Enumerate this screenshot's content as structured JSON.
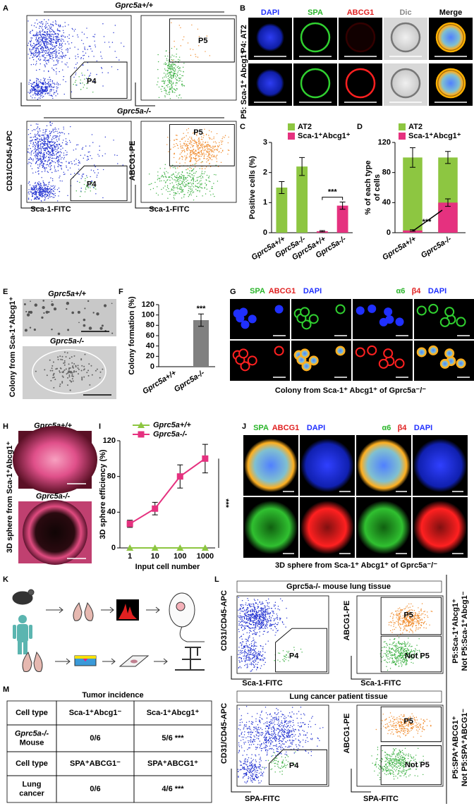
{
  "panel_labels": [
    "A",
    "B",
    "C",
    "D",
    "E",
    "F",
    "G",
    "H",
    "I",
    "J",
    "K",
    "L",
    "M"
  ],
  "panel_a": {
    "top_title": "Gprc5a+/+",
    "bottom_title": "Gprc5a-/-",
    "ylabel_left": "CD31/CD45-APC",
    "ylabel_right": "ABCG1-PE",
    "xlabel_left": "Sca-1-FITC",
    "xlabel_right": "Sca-1-FITC",
    "gates": [
      "P4",
      "P5",
      "P4",
      "P5"
    ]
  },
  "panel_b": {
    "columns": [
      "DAPI",
      "SPA",
      "ABCG1",
      "Dic",
      "Merge"
    ],
    "rows": [
      "P4: AT2",
      "P5: Sca-1⁺ Abcg1⁺"
    ]
  },
  "panel_e": {
    "top_title": "Gprc5a+/+",
    "bottom_title": "Gprc5a-/-",
    "side_label": "Colony from Sca-1⁺Abcg1⁺"
  },
  "panel_g": {
    "left_headers": [
      "SPA",
      "ABCG1",
      "DAPI"
    ],
    "right_headers": [
      "α6",
      "β4",
      "DAPI"
    ],
    "caption": "Colony from Sca-1⁺ Abcg1⁺ of Gprc5a⁻/⁻"
  },
  "panel_h": {
    "top_title": "Gprc5a+/+",
    "bottom_title": "Gprc5a-/-",
    "side_label": "3D sphere from Sca-1⁺Abcg1⁺"
  },
  "panel_j": {
    "left_headers": [
      "SPA",
      "ABCG1",
      "DAPI"
    ],
    "right_headers": [
      "α6",
      "β4",
      "DAPI"
    ],
    "caption": "3D sphere from Sca-1⁺ Abcg1⁺ of Gprc5a⁻/⁻"
  },
  "panel_l": {
    "top_title": "Gprc5a-/- mouse lung tissue",
    "bottom_title": "Lung cancer patient tissue",
    "ylabel_left": "CD31/CD45-APC",
    "ylabel_right": "ABCG1-PE",
    "top_xlabels": [
      "Sca-1-FITC",
      "Sca-1-FITC"
    ],
    "bottom_xlabels": [
      "SPA-FITC",
      "SPA-FITC"
    ],
    "top_gates": [
      "P4",
      "P5",
      "Not P5"
    ],
    "bottom_gates": [
      "P4",
      "P5",
      "Not P5"
    ],
    "top_side": [
      "P5:Sca-1⁺Abcg1⁺",
      "Not P5:Sca-1⁺Abcg1⁻"
    ],
    "bottom_side": [
      "P5:SPA⁺ABCG1⁺",
      "Not P5:SPA⁺ABCG1⁻"
    ]
  },
  "panel_m": {
    "title": "Tumor incidence",
    "rows": [
      [
        "Cell type",
        "Sca-1⁺Abcg1⁻",
        "Sca-1⁺Abcg1⁺"
      ],
      [
        [
          "Gprc5a-/-",
          "Mouse"
        ],
        "0/6",
        "5/6 ***"
      ],
      [
        "Cell type",
        "SPA⁺ABCG1⁻",
        "SPA⁺ABCG1⁺"
      ],
      [
        [
          "Lung",
          "cancer"
        ],
        "0/6",
        "4/6 ***"
      ]
    ]
  },
  "chart_data": [
    {
      "type": "bar",
      "ylabel": "Positive cells (%)",
      "categories": [
        "Gprc5a+/+",
        "Gprc5a-/-",
        "Gprc5a+/+",
        "Gprc5a-/-"
      ],
      "series": [
        {
          "name": "AT2",
          "color": "#8dc641",
          "values": [
            1.5,
            2.2,
            null,
            null
          ],
          "errors": [
            0.2,
            0.3,
            null,
            null
          ]
        },
        {
          "name": "Sca-1⁺Abcg1⁺",
          "color": "#e5317f",
          "values": [
            null,
            null,
            0.05,
            0.9
          ],
          "errors": [
            null,
            null,
            0.02,
            0.12
          ]
        }
      ],
      "ylim": [
        0,
        3
      ],
      "yticks": [
        0,
        1,
        2,
        3
      ],
      "annotation": "***"
    },
    {
      "type": "bar",
      "ylabel": [
        "% of each type",
        "of cells"
      ],
      "categories": [
        "Gprc5a+/+",
        "Gprc5a-/-"
      ],
      "series": [
        {
          "name": "AT2",
          "color": "#8dc641",
          "values": [
            100,
            100
          ],
          "errors": [
            13,
            8
          ]
        },
        {
          "name": "Sca-1⁺Abcg1⁺",
          "color": "#e5317f",
          "values": [
            3,
            40
          ],
          "errors": [
            1,
            5
          ]
        }
      ],
      "ylim": [
        0,
        120
      ],
      "yticks": [
        0,
        40,
        80,
        120
      ],
      "annotation": "***"
    },
    {
      "type": "bar",
      "ylabel": "Colony formation (%)",
      "categories": [
        "Gprc5a+/+",
        "Gprc5a-/-"
      ],
      "values": [
        0,
        90
      ],
      "errors": [
        null,
        12
      ],
      "color": "#808080",
      "ylim": [
        0,
        120
      ],
      "yticks": [
        0,
        20,
        40,
        60,
        80,
        100,
        120
      ],
      "annotation": "***"
    },
    {
      "type": "line",
      "ylabel": "3D sphere efficiency (%)",
      "xlabel": "Input cell number",
      "x": [
        1,
        10,
        100,
        1000
      ],
      "xlog": true,
      "xlim": [
        0.4,
        2500
      ],
      "xticks": [
        1,
        10,
        100,
        1000
      ],
      "ylim": [
        0,
        120
      ],
      "yticks": [
        0,
        40,
        80,
        120
      ],
      "series": [
        {
          "name": "Gprc5a+/+",
          "color": "#8dc641",
          "marker": "triangle",
          "values": [
            0,
            0,
            0,
            0
          ]
        },
        {
          "name": "Gprc5a-/-",
          "color": "#e5317f",
          "marker": "square",
          "values": [
            27,
            44,
            80,
            100
          ],
          "errors": [
            4,
            7,
            13,
            16
          ]
        }
      ],
      "annotation": "***"
    }
  ]
}
